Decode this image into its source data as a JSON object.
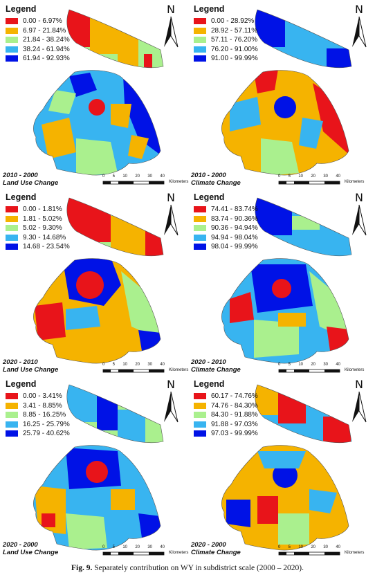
{
  "colors": {
    "red": "#e8141a",
    "orange": "#f5b300",
    "light_green": "#aaf08e",
    "sky_blue": "#38b4f0",
    "blue": "#0012e6"
  },
  "north_label": "N",
  "scale": {
    "ticks": [
      "0",
      "5",
      "10",
      "20",
      "30",
      "40"
    ],
    "unit": "Kilometers"
  },
  "panels": [
    {
      "legend_title": "Legend",
      "classes": [
        "0.00 - 6.97%",
        "6.97 - 21.84%",
        "21.84 - 38.24%",
        "38.24 - 61.94%",
        "61.94 - 92.93%"
      ],
      "period": "2010 - 2000",
      "factor": "Land Use Change"
    },
    {
      "legend_title": "Legend",
      "classes": [
        "0.00 - 28.92%",
        "28.92 - 57.11%",
        "57.11 - 76.20%",
        "76.20 - 91.00%",
        "91.00 - 99.99%"
      ],
      "period": "2010 - 2000",
      "factor": "Climate Change"
    },
    {
      "legend_title": "Legend",
      "classes": [
        "0.00 - 1.81%",
        "1.81 - 5.02%",
        "5.02 - 9.30%",
        "9.30 - 14.68%",
        "14.68 - 23.54%"
      ],
      "period": "2020 - 2010",
      "factor": "Land Use Change"
    },
    {
      "legend_title": "Legend",
      "classes": [
        "74.41 - 83.74%",
        "83.74 - 90.36%",
        "90.36 - 94.94%",
        "94.94 - 98.04%",
        "98.04 - 99.99%"
      ],
      "period": "2020 - 2010",
      "factor": "Climate Change"
    },
    {
      "legend_title": "Legend",
      "classes": [
        "0.00 - 3.41%",
        "3.41 - 8.85%",
        "8.85 - 16.25%",
        "16.25 - 25.79%",
        "25.79 - 40.62%"
      ],
      "period": "2020 - 2000",
      "factor": "Land Use Change"
    },
    {
      "legend_title": "Legend",
      "classes": [
        "60.17 - 74.76%",
        "74.76 - 84.30%",
        "84.30 - 91.88%",
        "91.88 - 97.03%",
        "97.03 - 99.99%"
      ],
      "period": "2020 - 2000",
      "factor": "Climate Change"
    }
  ],
  "figure_caption": {
    "label": "Fig. 9.",
    "text": "Separately contribution on WY in subdistrict scale (2000 – 2020)."
  }
}
